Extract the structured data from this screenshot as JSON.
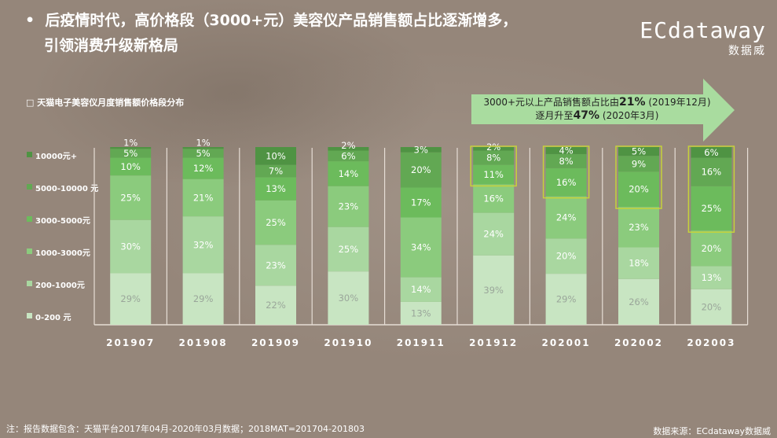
{
  "header": {
    "bullet": "•",
    "line1": "后疫情时代，高价格段（3000+元）美容仪产品销售额占比逐渐增多，",
    "line2": "引领消费升级新格局"
  },
  "logo": {
    "brand": "ECdataway",
    "cn": "数据威"
  },
  "callout": {
    "pre": "3000+元以上产品销售额占比由",
    "v1": "21%",
    "d1": " (2019年12月)",
    "mid": "逐月升至",
    "v2": "47%",
    "d2": " (2020年3月)"
  },
  "footer": {
    "note": "注：报告数据包含：天猫平台2017年04月-2020年03月数据；2018MAT=201704-201803",
    "source": "数据来源：ECdataway数据威"
  },
  "chart_data": {
    "type": "bar",
    "stacked": true,
    "title": "□ 天猫电子美容仪月度销售额价格段分布",
    "categories": [
      "201907",
      "201908",
      "201909",
      "201910",
      "201911",
      "201912",
      "202001",
      "202002",
      "202003"
    ],
    "legend_position": "left",
    "series": [
      {
        "name": "0-200 元",
        "color": "#c8e5c2",
        "values": [
          29,
          29,
          22,
          30,
          13,
          39,
          29,
          26,
          20
        ]
      },
      {
        "name": "200-1000元",
        "color": "#a9d7a0",
        "values": [
          30,
          32,
          23,
          25,
          14,
          24,
          20,
          18,
          13
        ]
      },
      {
        "name": "1000-3000元",
        "color": "#8bcb7d",
        "values": [
          25,
          21,
          25,
          23,
          34,
          16,
          24,
          23,
          20
        ]
      },
      {
        "name": "3000-5000元",
        "color": "#6cbb5c",
        "values": [
          10,
          12,
          13,
          14,
          17,
          11,
          16,
          20,
          25
        ]
      },
      {
        "name": "5000-10000 元",
        "color": "#62a853",
        "values": [
          5,
          5,
          7,
          6,
          20,
          8,
          8,
          9,
          16
        ]
      },
      {
        "name": "10000元+",
        "color": "#4f9343",
        "values": [
          1,
          1,
          10,
          2,
          3,
          2,
          4,
          5,
          6
        ]
      }
    ],
    "highlighted_categories": [
      "201912",
      "202001",
      "202002",
      "202003"
    ],
    "highlight_color": "#c6d23a"
  }
}
